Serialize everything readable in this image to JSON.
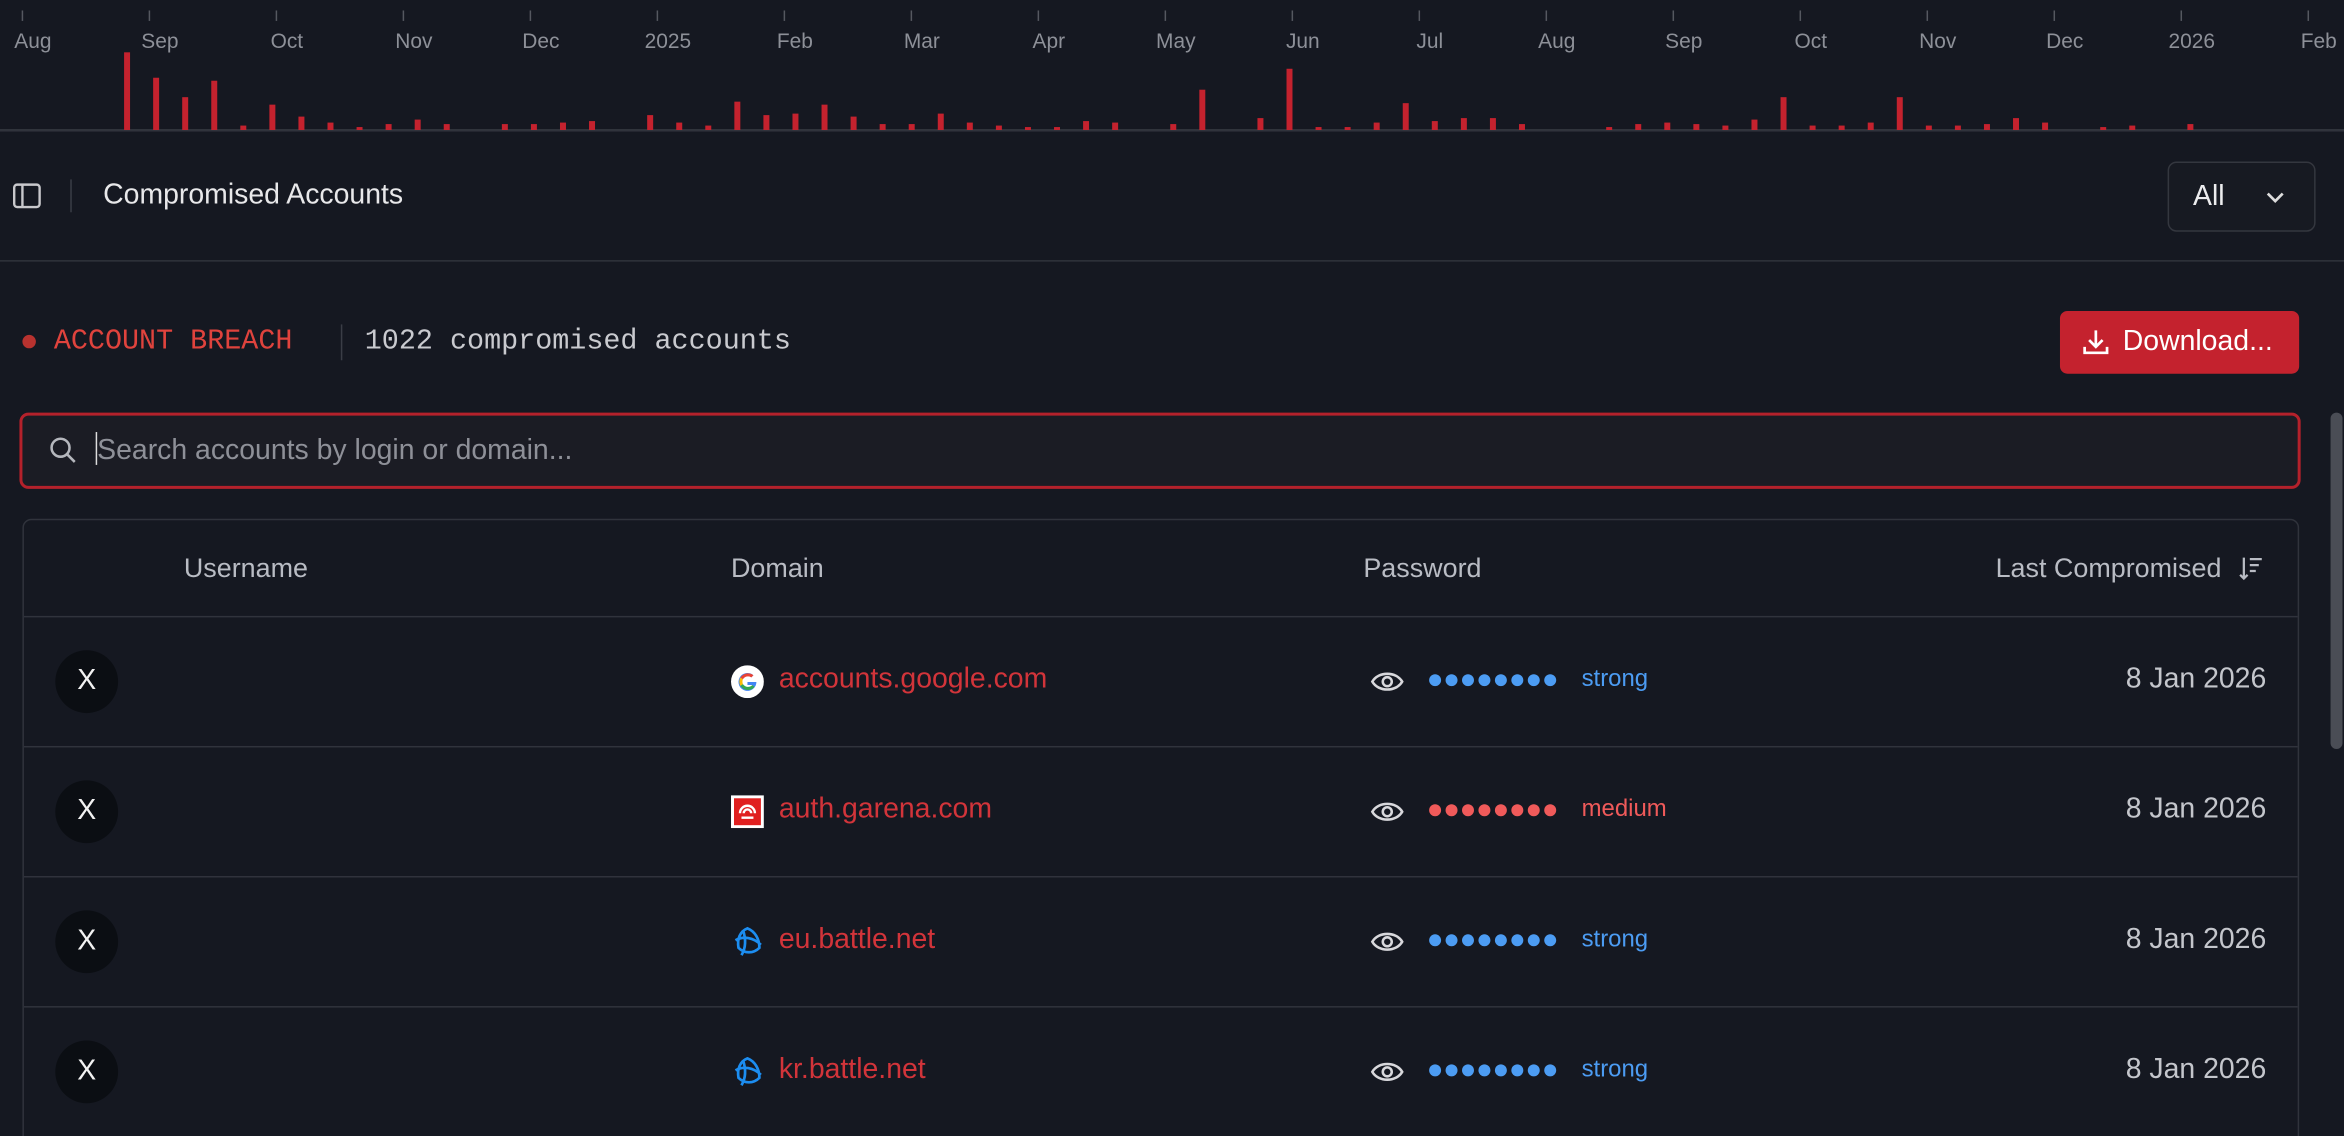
{
  "chart_data": {
    "type": "bar",
    "color": "#c4222e",
    "x_labels": [
      "Aug",
      "Sep",
      "Oct",
      "Nov",
      "Dec",
      "2025",
      "Feb",
      "Mar",
      "Apr",
      "May",
      "Jun",
      "Jul",
      "Aug",
      "Sep",
      "Oct",
      "Nov",
      "Dec",
      "2026",
      "Feb"
    ],
    "values": [
      52,
      35,
      22,
      33,
      3,
      17,
      9,
      5,
      2,
      4,
      7,
      4,
      null,
      4,
      4,
      5,
      6,
      null,
      10,
      5,
      3,
      19,
      10,
      11,
      17,
      9,
      4,
      4,
      11,
      5,
      3,
      2,
      2,
      6,
      5,
      null,
      4,
      27,
      null,
      8,
      41,
      2,
      2,
      5,
      18,
      6,
      8,
      8,
      4,
      null,
      null,
      2,
      4,
      5,
      4,
      3,
      7,
      22,
      3,
      3,
      5,
      22,
      3,
      3,
      4,
      8,
      5,
      null,
      2,
      3,
      null,
      4
    ]
  },
  "header": {
    "title": "Compromised Accounts",
    "filter": "All"
  },
  "breach": {
    "label": "ACCOUNT BREACH",
    "count_text": "1022 compromised accounts",
    "download": "Download..."
  },
  "search": {
    "placeholder": "Search accounts by login or domain..."
  },
  "table": {
    "columns": [
      "Username",
      "Domain",
      "Password",
      "Last Compromised"
    ],
    "rows": [
      {
        "avatar": "X",
        "domain": "accounts.google.com",
        "strength": "strong",
        "date": "8 Jan 2026"
      },
      {
        "avatar": "X",
        "domain": "auth.garena.com",
        "strength": "medium",
        "date": "8 Jan 2026"
      },
      {
        "avatar": "X",
        "domain": "eu.battle.net",
        "strength": "strong",
        "date": "8 Jan 2026"
      },
      {
        "avatar": "X",
        "domain": "kr.battle.net",
        "strength": "strong",
        "date": "8 Jan 2026"
      }
    ]
  }
}
